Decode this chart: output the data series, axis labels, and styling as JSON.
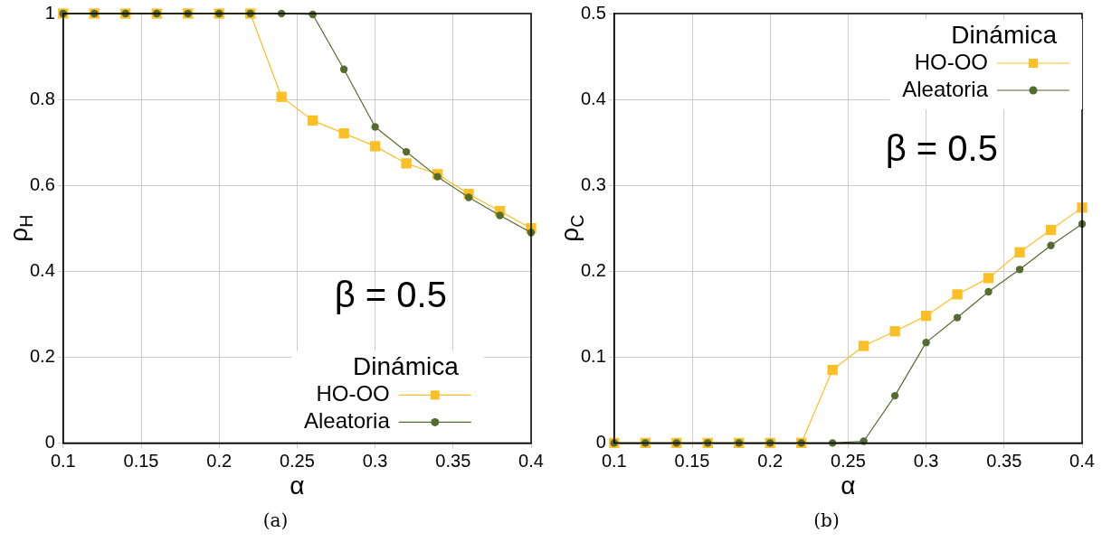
{
  "chart_data": [
    {
      "type": "line",
      "xlabel": "α",
      "ylabel": "ρ$_{H}$",
      "legend_title": "Dinámica",
      "legend": "bottom",
      "grid": true,
      "x": [
        0.1,
        0.12,
        0.14,
        0.16,
        0.18,
        0.2,
        0.22,
        0.24,
        0.26,
        0.28,
        0.3,
        0.32,
        0.34,
        0.36,
        0.38,
        0.4
      ],
      "series": [
        {
          "name": "HO-OO",
          "color": "#fcbf26",
          "marker": "square",
          "values": [
            1,
            1,
            1,
            1,
            1,
            1,
            1,
            0.806,
            0.751,
            0.721,
            0.691,
            0.651,
            0.626,
            0.58,
            0.54,
            0.5
          ]
        },
        {
          "name": "Aleatoria",
          "color": "#556b2f",
          "marker": "circle",
          "values": [
            1,
            1,
            1,
            1,
            1,
            1,
            1,
            1,
            0.998,
            0.87,
            0.736,
            0.678,
            0.62,
            0.572,
            0.53,
            0.49
          ]
        }
      ],
      "xlim": [
        0.1,
        0.4
      ],
      "xticks": [
        0.1,
        0.15,
        0.2,
        0.25,
        0.3,
        0.35,
        0.4
      ],
      "ylim": [
        0,
        1
      ],
      "yticks": [
        0,
        0.2,
        0.4,
        0.6,
        0.8,
        1
      ],
      "annotations": [
        "β = 0.5",
        "(a)"
      ]
    },
    {
      "type": "line",
      "xlabel": "α",
      "ylabel": "ρ$_{C}$",
      "legend_title": "Dinámica",
      "legend": "top right",
      "grid": true,
      "x": [
        0.1,
        0.12,
        0.14,
        0.16,
        0.18,
        0.2,
        0.22,
        0.24,
        0.26,
        0.28,
        0.3,
        0.32,
        0.34,
        0.36,
        0.38,
        0.4
      ],
      "series": [
        {
          "name": "HO-OO",
          "color": "#fcbf26",
          "marker": "square",
          "values": [
            0,
            0,
            0,
            0,
            0,
            0,
            0,
            0.085,
            0.113,
            0.13,
            0.148,
            0.173,
            0.192,
            0.222,
            0.248,
            0.274
          ]
        },
        {
          "name": "Aleatoria",
          "color": "#556b2f",
          "marker": "circle",
          "values": [
            0,
            0,
            0,
            0,
            0,
            0,
            0,
            0,
            0.002,
            0.055,
            0.117,
            0.146,
            0.176,
            0.202,
            0.23,
            0.255
          ]
        }
      ],
      "xlim": [
        0.1,
        0.4
      ],
      "xticks": [
        0.1,
        0.15,
        0.2,
        0.25,
        0.3,
        0.35,
        0.4
      ],
      "ylim": [
        0,
        0.5
      ],
      "yticks": [
        0,
        0.1,
        0.2,
        0.3,
        0.4,
        0.5
      ],
      "annotations": [
        "β = 0.5",
        "(b)"
      ]
    }
  ]
}
